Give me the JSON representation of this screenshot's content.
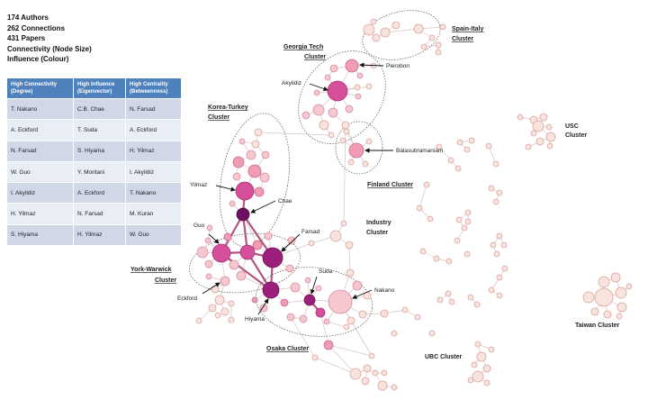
{
  "summary": {
    "authors": "174 Authors",
    "connections": "262 Connections",
    "papers": "431 Papers",
    "node_size": "Connectivity (Node Size)",
    "colour": "Influence (Colour)"
  },
  "table": {
    "headers": [
      [
        "High Connectivity",
        "(Degree)"
      ],
      [
        "High Influence",
        "(Eigenvector)"
      ],
      [
        "High Centrality",
        "(Betweenness)"
      ]
    ],
    "rows": [
      [
        "T. Nakano",
        "C.B. Chae",
        "N. Farsad"
      ],
      [
        "A. Eckford",
        "T. Suda",
        "A. Eckford"
      ],
      [
        "N. Farsad",
        "S. Hiyama",
        "H. Yilmaz"
      ],
      [
        "W. Guo",
        "Y. Moritani",
        "I. Akyildiz"
      ],
      [
        "I. Akyildiz",
        "A. Eckford",
        "T. Nakano"
      ],
      [
        "H. Yilmaz",
        "N. Farsad",
        "M. Kuran"
      ],
      [
        "S. Hiyama",
        "H. Yilmaz",
        "W. Guo"
      ]
    ]
  },
  "clusters": {
    "spain_italy": [
      "Spain-Italy",
      "Cluster"
    ],
    "georgia_tech": [
      "Georgia Tech",
      "Cluster"
    ],
    "korea_turkey": [
      "Korea-Turkey",
      "Cluster"
    ],
    "finland": [
      "Finland Cluster"
    ],
    "industry": [
      "Industry",
      "Cluster"
    ],
    "york_warwick": [
      "York-Warwick",
      "Cluster"
    ],
    "osaka": [
      "Osaka Cluster"
    ],
    "usc": [
      "USC",
      "Cluster"
    ],
    "taiwan": [
      "Taiwan Cluster"
    ],
    "ubc": [
      "UBC Cluster"
    ]
  },
  "people": {
    "pierobon": "Pierobon",
    "akyildiz": "Akyildiz",
    "balasubramaniam": "Balasubramaniam",
    "yilmaz": "Yilmaz",
    "chae": "Chae",
    "farsad": "Farsad",
    "guo": "Guo",
    "eckford": "Eckford",
    "suda": "Suda",
    "nakano": "Nakano",
    "hiyama": "Hiyama"
  },
  "colors": {
    "weak": "#f9e3de",
    "light": "#f6c7cf",
    "mid": "#f19bb5",
    "strong": "#d64f9a",
    "top": "#9c1f7c",
    "darkest": "#6e0f63",
    "table_header": "#4f81bd"
  }
}
